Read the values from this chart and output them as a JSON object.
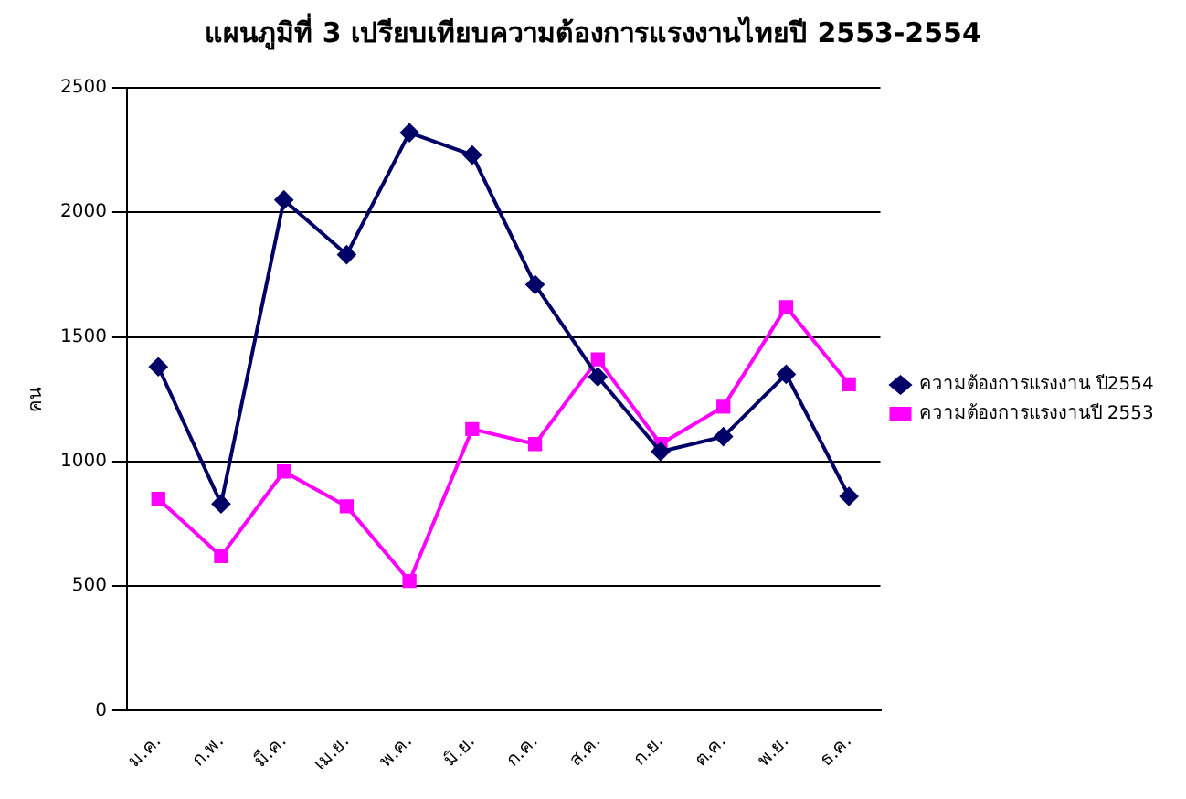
{
  "chart_data": {
    "type": "line",
    "title": "แผนภูมิที่ 3 เปรียบเทียบความต้องการแรงงานไทยปี 2553-2554",
    "ylabel": "คน",
    "categories": [
      "ม.ค.",
      "ก.พ.",
      "มี.ค.",
      "เม.ย.",
      "พ.ค.",
      "มิ.ย.",
      "ก.ค.",
      "ส.ค.",
      "ก.ย.",
      "ต.ค.",
      "พ.ย.",
      "ธ.ค."
    ],
    "series": [
      {
        "name": "ความต้องการแรงงาน ปี2554",
        "color": "#000066",
        "marker": "diamond",
        "values": [
          1380,
          830,
          2050,
          1830,
          2320,
          2230,
          1710,
          1340,
          1040,
          1100,
          1350,
          860
        ]
      },
      {
        "name": "ความต้องการแรงงานปี 2553",
        "color": "#ff00ff",
        "marker": "square",
        "values": [
          850,
          620,
          960,
          820,
          520,
          1130,
          1070,
          1410,
          1070,
          1220,
          1620,
          1310
        ]
      }
    ],
    "ylim": [
      0,
      2500
    ],
    "yticks": [
      0,
      500,
      1000,
      1500,
      2000,
      2500
    ],
    "grid": "y",
    "legend": "right"
  }
}
